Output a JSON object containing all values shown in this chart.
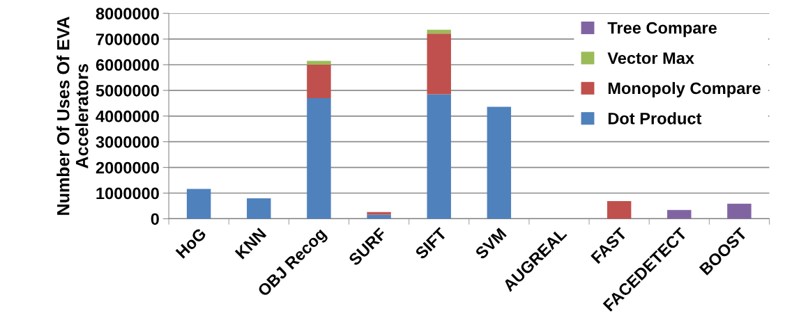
{
  "chart_data": {
    "type": "bar",
    "stacked": true,
    "ylabel": "Number Of Uses Of EVA Accelerators",
    "categories": [
      "HoG",
      "KNN",
      "OBJ Recog",
      "SURF",
      "SIFT",
      "SVM",
      "AUGREAL",
      "FAST",
      "FACEDETECT",
      "BOOST"
    ],
    "series": [
      {
        "name": "Dot Product",
        "color": "#4f81bd",
        "values": [
          1160000,
          800000,
          4700000,
          160000,
          4850000,
          4360000,
          0,
          0,
          0,
          0
        ]
      },
      {
        "name": "Monopoly Compare",
        "color": "#c0504d",
        "values": [
          0,
          0,
          1300000,
          100000,
          2360000,
          0,
          0,
          690000,
          0,
          0
        ]
      },
      {
        "name": "Vector Max",
        "color": "#9bbb59",
        "values": [
          0,
          0,
          150000,
          0,
          150000,
          0,
          0,
          0,
          0,
          0
        ]
      },
      {
        "name": "Tree Compare",
        "color": "#8064a2",
        "values": [
          0,
          0,
          0,
          0,
          0,
          0,
          0,
          0,
          340000,
          590000
        ]
      }
    ],
    "ylim": [
      0,
      8000000
    ],
    "yticks": [
      0,
      1000000,
      2000000,
      3000000,
      4000000,
      5000000,
      6000000,
      7000000,
      8000000
    ],
    "grid": "y",
    "legend": "top right"
  }
}
